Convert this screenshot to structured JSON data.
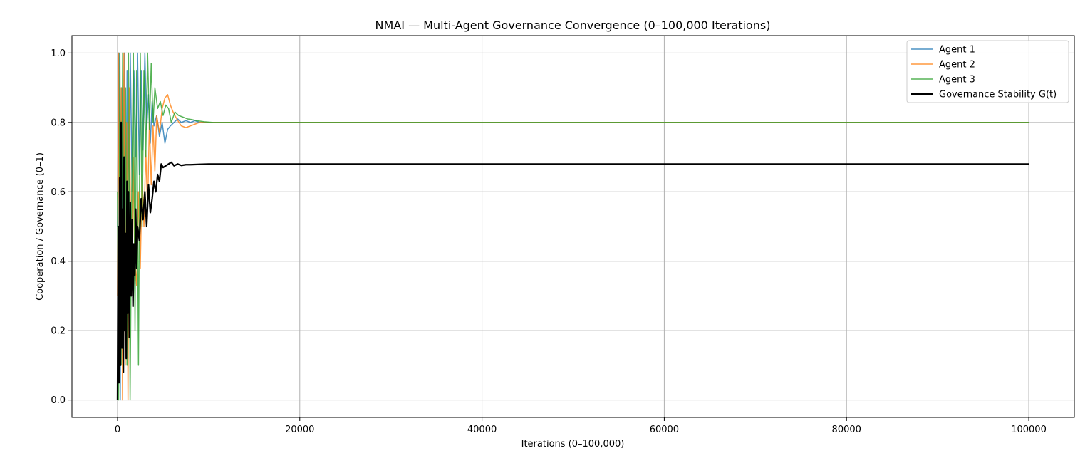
{
  "chart_data": {
    "type": "line",
    "title": "NMAI — Multi-Agent Governance Convergence (0–100,000 Iterations)",
    "xlabel": "Iterations (0–100,000)",
    "ylabel": "Cooperation / Governance (0–1)",
    "xlim": [
      -5000,
      105000
    ],
    "ylim": [
      -0.05,
      1.05
    ],
    "xticks": [
      0,
      20000,
      40000,
      60000,
      80000,
      100000
    ],
    "yticks": [
      0.0,
      0.2,
      0.4,
      0.6,
      0.8,
      1.0
    ],
    "xtick_labels": [
      "0",
      "20000",
      "40000",
      "60000",
      "80000",
      "100000"
    ],
    "ytick_labels": [
      "0.0",
      "0.2",
      "0.4",
      "0.6",
      "0.8",
      "1.0"
    ],
    "grid": true,
    "legend_position": "top-right",
    "series": [
      {
        "name": "Agent 1",
        "color": "#1f77b4",
        "x": [
          0,
          150,
          300,
          450,
          600,
          750,
          900,
          1050,
          1200,
          1400,
          1600,
          1800,
          2000,
          2200,
          2400,
          2600,
          2800,
          3000,
          3200,
          3400,
          3600,
          3800,
          4000,
          4300,
          4600,
          4900,
          5200,
          5500,
          5800,
          6200,
          6600,
          7000,
          7500,
          8000,
          8500,
          9000,
          10000,
          12000,
          100000
        ],
        "y": [
          0.5,
          1.0,
          0.0,
          0.9,
          0.1,
          1.0,
          0.3,
          0.95,
          0.2,
          1.0,
          0.6,
          0.95,
          0.7,
          1.0,
          0.65,
          0.95,
          0.72,
          1.0,
          0.78,
          0.88,
          0.74,
          0.86,
          0.79,
          0.82,
          0.76,
          0.8,
          0.74,
          0.78,
          0.79,
          0.8,
          0.81,
          0.8,
          0.805,
          0.8,
          0.805,
          0.8,
          0.8,
          0.8,
          0.8
        ]
      },
      {
        "name": "Agent 2",
        "color": "#ff7f0e",
        "x": [
          0,
          100,
          250,
          400,
          550,
          700,
          850,
          1000,
          1150,
          1300,
          1500,
          1700,
          1900,
          2100,
          2300,
          2500,
          2700,
          2900,
          3100,
          3300,
          3500,
          3700,
          3900,
          4100,
          4300,
          4600,
          4900,
          5200,
          5500,
          5800,
          6100,
          6500,
          7000,
          7500,
          8000,
          8500,
          9000,
          10000,
          12000,
          100000
        ],
        "y": [
          0.3,
          1.0,
          0.2,
          0.9,
          0.0,
          1.0,
          0.1,
          0.8,
          0.0,
          0.9,
          0.3,
          0.7,
          0.4,
          0.33,
          0.6,
          0.38,
          0.65,
          0.5,
          0.72,
          0.55,
          0.8,
          0.62,
          0.79,
          0.66,
          0.82,
          0.77,
          0.84,
          0.87,
          0.88,
          0.85,
          0.83,
          0.81,
          0.79,
          0.785,
          0.79,
          0.795,
          0.8,
          0.8,
          0.8,
          0.8
        ]
      },
      {
        "name": "Agent 3",
        "color": "#2ca02c",
        "x": [
          0,
          120,
          260,
          400,
          560,
          720,
          880,
          1040,
          1200,
          1380,
          1560,
          1740,
          1920,
          2100,
          2300,
          2500,
          2700,
          2900,
          3100,
          3300,
          3500,
          3700,
          3900,
          4100,
          4400,
          4700,
          5000,
          5300,
          5600,
          5900,
          6300,
          6700,
          7200,
          7700,
          8200,
          8700,
          9500,
          10500,
          12000,
          100000
        ],
        "y": [
          0.6,
          0.0,
          1.0,
          0.1,
          1.0,
          0.2,
          0.9,
          0.1,
          1.0,
          0.0,
          0.6,
          1.0,
          0.2,
          0.95,
          0.1,
          1.0,
          0.5,
          0.95,
          0.7,
          1.0,
          0.78,
          0.97,
          0.8,
          0.9,
          0.84,
          0.86,
          0.82,
          0.85,
          0.84,
          0.8,
          0.83,
          0.82,
          0.815,
          0.81,
          0.808,
          0.805,
          0.802,
          0.8,
          0.8,
          0.8
        ]
      },
      {
        "name": "Governance Stability G(t)",
        "color": "#000000",
        "x": [
          0,
          80,
          160,
          240,
          320,
          400,
          480,
          560,
          640,
          720,
          800,
          880,
          960,
          1040,
          1120,
          1200,
          1300,
          1400,
          1500,
          1600,
          1700,
          1800,
          1900,
          2000,
          2100,
          2200,
          2400,
          2600,
          2800,
          3000,
          3200,
          3400,
          3600,
          3800,
          4000,
          4200,
          4400,
          4600,
          4800,
          5000,
          5300,
          5600,
          5900,
          6200,
          6600,
          7000,
          7500,
          8000,
          9000,
          10000,
          12000,
          100000
        ],
        "y": [
          0.0,
          0.5,
          0.05,
          0.64,
          0.1,
          0.8,
          0.15,
          0.55,
          0.08,
          0.7,
          0.2,
          0.48,
          0.12,
          0.63,
          0.25,
          0.6,
          0.18,
          0.57,
          0.3,
          0.52,
          0.27,
          0.45,
          0.36,
          0.55,
          0.38,
          0.5,
          0.46,
          0.58,
          0.52,
          0.6,
          0.5,
          0.62,
          0.54,
          0.58,
          0.63,
          0.6,
          0.65,
          0.63,
          0.68,
          0.67,
          0.675,
          0.68,
          0.685,
          0.675,
          0.68,
          0.676,
          0.678,
          0.678,
          0.679,
          0.68,
          0.68,
          0.68
        ]
      }
    ]
  }
}
